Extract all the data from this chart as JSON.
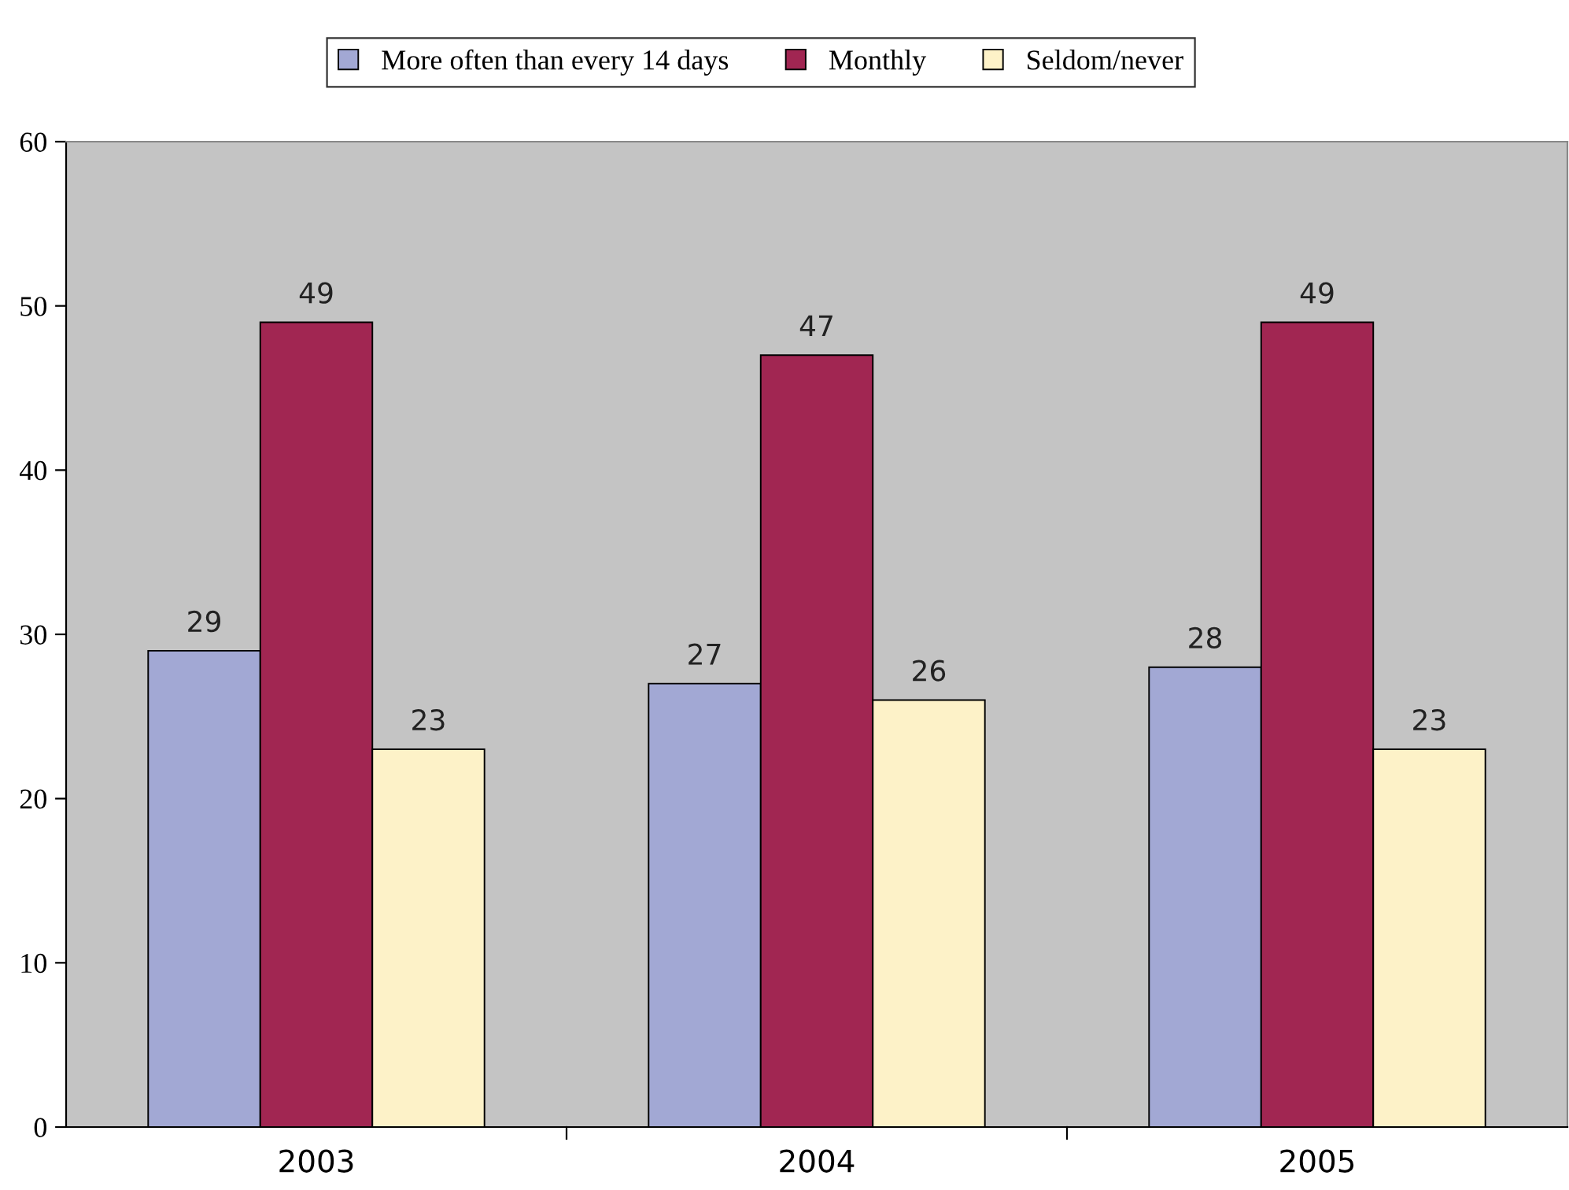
{
  "chart_data": {
    "type": "bar",
    "categories": [
      "2003",
      "2004",
      "2005"
    ],
    "series": [
      {
        "name": "More often than every 14 days",
        "color": "#a2a8d4",
        "values": [
          29,
          27,
          28
        ]
      },
      {
        "name": "Monthly",
        "color": "#a12652",
        "values": [
          49,
          47,
          49
        ]
      },
      {
        "name": "Seldom/never",
        "color": "#fdf2c8",
        "values": [
          23,
          26,
          23
        ]
      }
    ],
    "ylim": [
      0,
      60
    ],
    "yticks": [
      0,
      10,
      20,
      30,
      40,
      50,
      60
    ],
    "data_labels": true,
    "grid": false,
    "legend": "top"
  }
}
